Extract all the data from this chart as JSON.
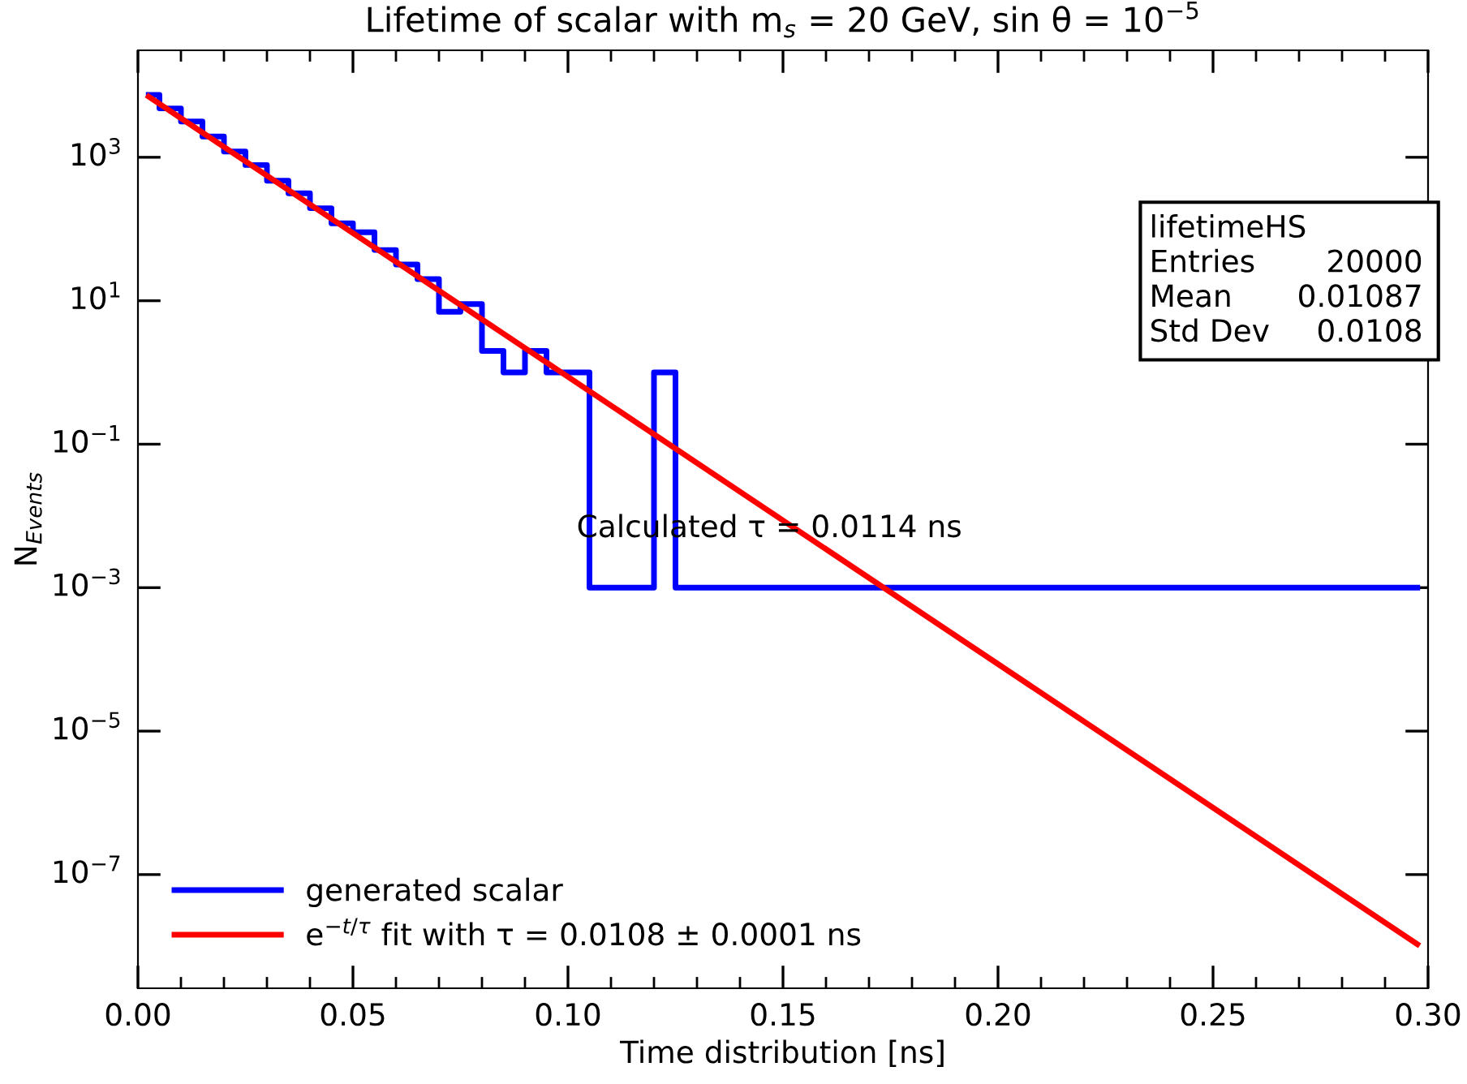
{
  "chart_data": {
    "type": "step",
    "title": "Lifetime of scalar with m$_{s}$ = 20 GeV, sin θ = 10$^{−5}$",
    "xlabel": "Time distribution [ns]",
    "ylabel": "N$_{Events}$",
    "log": "y",
    "xlim": [
      0.0,
      0.3
    ],
    "xticks": [
      {
        "value": 0.0,
        "label": "0.00"
      },
      0.05,
      {
        "value": 0.1,
        "label": "0.10"
      },
      0.15,
      {
        "value": 0.2,
        "label": "0.20"
      },
      0.25,
      {
        "value": 0.3,
        "label": "0.30"
      }
    ],
    "ylim": [
      2.6e-09,
      31000.0
    ],
    "yticks": [
      {
        "value": 1e-07,
        "label": "10$^{−7}$"
      },
      {
        "value": 1e-05,
        "label": "10$^{−5}$"
      },
      {
        "value": 0.001,
        "label": "10$^{−3}$"
      },
      {
        "value": 0.1,
        "label": "10$^{−1}$"
      },
      {
        "value": 10,
        "label": "10$^{1}$"
      },
      {
        "value": 1000,
        "label": "10$^{3}$"
      }
    ],
    "grid": false,
    "legend": "bottom left",
    "series": [
      {
        "name": "generated scalar",
        "color": "#0000ff",
        "x": [
          0.0025,
          0.0075,
          0.0125,
          0.0175,
          0.0225,
          0.0275,
          0.0325,
          0.0375,
          0.0425,
          0.0475,
          0.0525,
          0.0575,
          0.0625,
          0.0675,
          0.0725,
          0.0775,
          0.0825,
          0.0875,
          0.0925,
          0.0975,
          0.1025,
          0.1075,
          0.1125,
          0.1175,
          0.1225,
          0.1275,
          0.1325,
          0.1375,
          0.1425,
          0.1475,
          0.1525,
          0.1575,
          0.1625,
          0.1675,
          0.1725,
          0.1775,
          0.1825,
          0.1875,
          0.1925,
          0.1975,
          0.2025,
          0.2075,
          0.2125,
          0.2175,
          0.2225,
          0.2275,
          0.2325,
          0.2375,
          0.2425,
          0.2475,
          0.2525,
          0.2575,
          0.2625,
          0.2675,
          0.2725,
          0.2775,
          0.2825,
          0.2875,
          0.2925,
          0.2975
        ],
        "values": [
          7400,
          4800,
          3150,
          1950,
          1200,
          780,
          470,
          315,
          195,
          120,
          90,
          51,
          32,
          20,
          7,
          9,
          2,
          1,
          2,
          1,
          1,
          0.001,
          0.001,
          0.001,
          1,
          0.001,
          0.001,
          0.001,
          0.001,
          0.001,
          0.001,
          0.001,
          0.001,
          0.001,
          0.001,
          0.001,
          0.001,
          0.001,
          0.001,
          0.001,
          0.001,
          0.001,
          0.001,
          0.001,
          0.001,
          0.001,
          0.001,
          0.001,
          0.001,
          0.001,
          0.001,
          0.001,
          0.001,
          0.001,
          0.001,
          0.001,
          0.001,
          0.001,
          0.001,
          0.001
        ]
      },
      {
        "name": "e$^{−t/τ}$ fit with τ = 0.0108 ± 0.0001 ns",
        "type": "line",
        "color": "#ff0000",
        "x": [
          0.0025,
          0.2975
        ],
        "values": [
          7000,
          1.07e-08
        ]
      }
    ],
    "annotations": [
      "Calculated τ = 0.0114 ns",
      "lifetimeHS",
      "Entries",
      "20000",
      "Mean",
      "0.01087",
      "Std Dev",
      "0.0108"
    ]
  }
}
